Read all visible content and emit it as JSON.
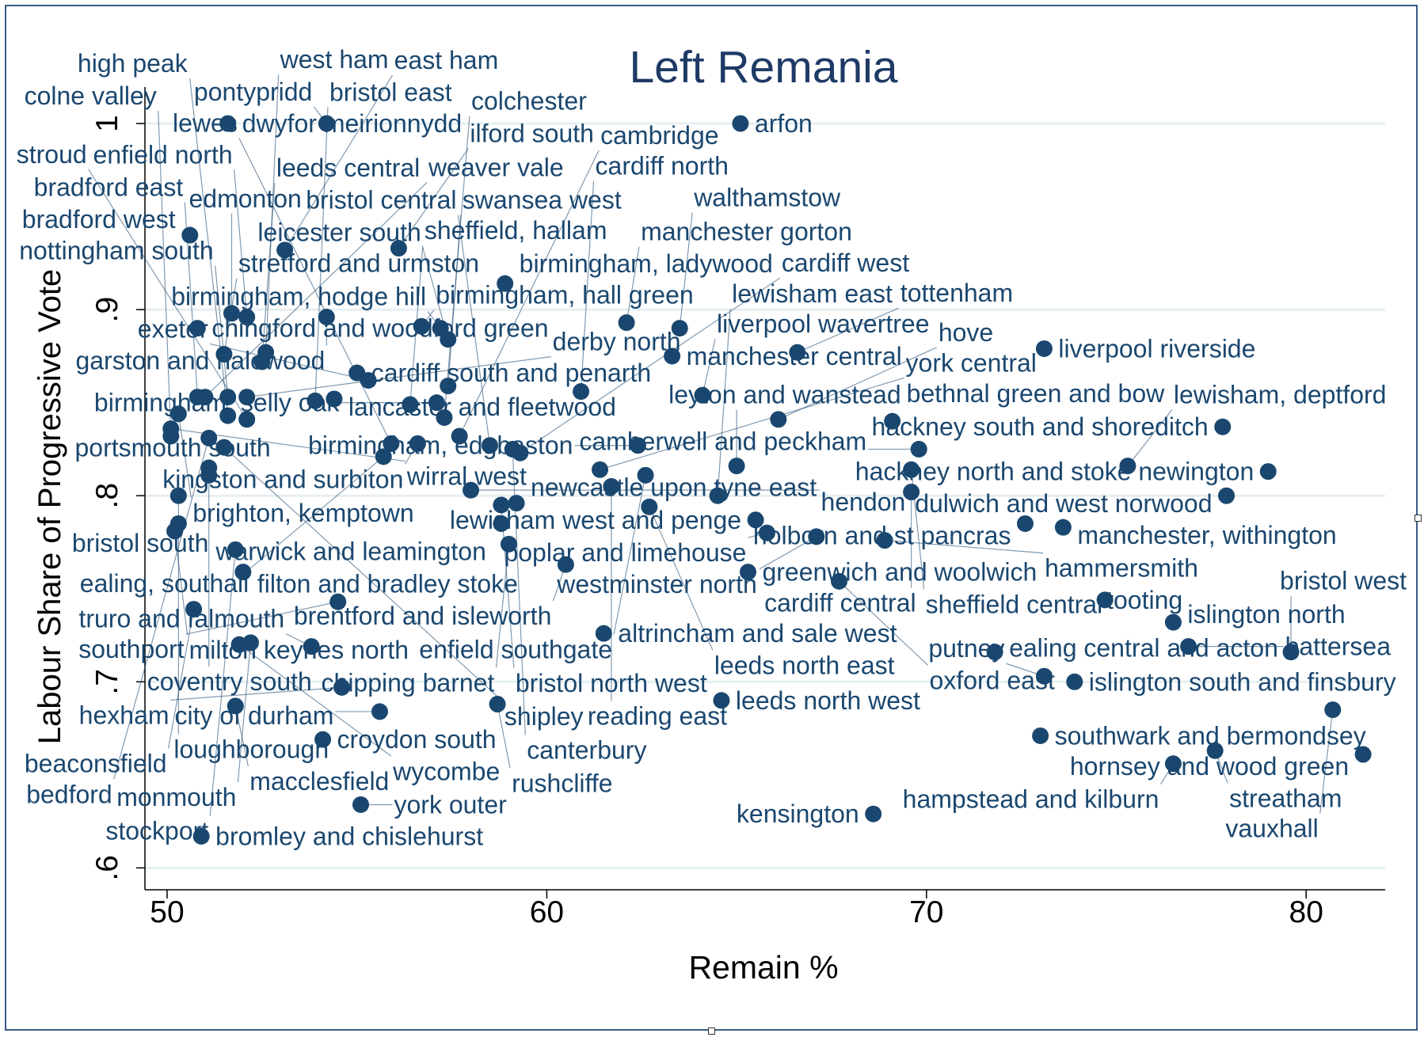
{
  "chart_data": {
    "type": "scatter",
    "title": "Left Remania",
    "xlabel": "Remain %",
    "ylabel": "Labour Share of Progressive Vote",
    "xlim": [
      49.4,
      82.1
    ],
    "ylim": [
      0.594,
      1.0
    ],
    "xticks": [
      50,
      60,
      70,
      80
    ],
    "xtick_labels": [
      "50",
      "60",
      "70",
      "80"
    ],
    "yticks": [
      0.6,
      0.7,
      0.8,
      0.9,
      1.0
    ],
    "ytick_labels": [
      ".6",
      ".7",
      ".8",
      ".9",
      "1"
    ],
    "grid": true,
    "marker_color": "#1a476f",
    "points": [
      {
        "label": "dwyfor meirionnydd",
        "x": 51.6,
        "y": 1.0
      },
      {
        "label": "pontypridd",
        "x": 54.2,
        "y": 1.0
      },
      {
        "label": "arfon",
        "x": 65.1,
        "y": 1.0
      },
      {
        "label": "bradford west",
        "x": 50.6,
        "y": 0.94
      },
      {
        "label": "east ham",
        "x": 53.1,
        "y": 0.932
      },
      {
        "label": "ilford south",
        "x": 56.1,
        "y": 0.933
      },
      {
        "label": "birmingham, ladywood",
        "x": 58.9,
        "y": 0.914
      },
      {
        "label": "edmonton",
        "x": 51.7,
        "y": 0.898
      },
      {
        "label": "garston and halewood",
        "x": 54.2,
        "y": 0.896
      },
      {
        "label": "enfield north",
        "x": 52.1,
        "y": 0.896
      },
      {
        "label": "chingford and woodford green",
        "x": 50.8,
        "y": 0.89
      },
      {
        "label": "birmingham, hall green",
        "x": 56.7,
        "y": 0.891
      },
      {
        "label": "birmingham, hodge hill",
        "x": 57.2,
        "y": 0.89
      },
      {
        "label": "manchester gorton",
        "x": 62.1,
        "y": 0.893
      },
      {
        "label": "walthamstow",
        "x": 63.5,
        "y": 0.89
      },
      {
        "label": "leicester south",
        "x": 57.4,
        "y": 0.884
      },
      {
        "label": "liverpool riverside",
        "x": 73.1,
        "y": 0.879
      },
      {
        "label": "manchester central",
        "x": 63.3,
        "y": 0.875
      },
      {
        "label": "tottenham",
        "x": 66.6,
        "y": 0.877
      },
      {
        "label": "stretford and urmston",
        "x": 51.5,
        "y": 0.876
      },
      {
        "label": "west ham",
        "x": 52.6,
        "y": 0.877
      },
      {
        "label": "leeds central",
        "x": 52.5,
        "y": 0.872
      },
      {
        "label": "cardiff south and penarth",
        "x": 55.0,
        "y": 0.866
      },
      {
        "label": "exeter",
        "x": 55.3,
        "y": 0.862
      },
      {
        "label": "swansea west",
        "x": 57.4,
        "y": 0.859
      },
      {
        "label": "cardiff north",
        "x": 60.9,
        "y": 0.856
      },
      {
        "label": "liverpool wavertree",
        "x": 64.1,
        "y": 0.854
      },
      {
        "label": "bradford east",
        "x": 50.8,
        "y": 0.853
      },
      {
        "label": "weaver vale",
        "x": 51.0,
        "y": 0.853
      },
      {
        "label": "nottingham south",
        "x": 51.6,
        "y": 0.853
      },
      {
        "label": "derby north",
        "x": 52.1,
        "y": 0.853
      },
      {
        "label": "bristol east",
        "x": 53.9,
        "y": 0.851
      },
      {
        "label": "lancaster and fleetwood",
        "x": 54.4,
        "y": 0.852
      },
      {
        "label": "sheffield, hallam",
        "x": 56.4,
        "y": 0.849
      },
      {
        "label": "birmingham, selly oak",
        "x": 57.1,
        "y": 0.85
      },
      {
        "label": "brighton, kemptown",
        "x": 50.3,
        "y": 0.844
      },
      {
        "label": "high peak",
        "x": 51.6,
        "y": 0.843
      },
      {
        "label": "stroud",
        "x": 52.1,
        "y": 0.841
      },
      {
        "label": "colchester",
        "x": 57.3,
        "y": 0.842
      },
      {
        "label": "hove",
        "x": 66.1,
        "y": 0.841
      },
      {
        "label": "bethnal green and bow",
        "x": 69.1,
        "y": 0.84
      },
      {
        "label": "hackney south and shoreditch",
        "x": 77.8,
        "y": 0.837
      },
      {
        "label": "wirral west",
        "x": 50.1,
        "y": 0.836
      },
      {
        "label": "colne valley",
        "x": 50.1,
        "y": 0.832
      },
      {
        "label": "bedford",
        "x": 51.1,
        "y": 0.831
      },
      {
        "label": "cambridge",
        "x": 57.7,
        "y": 0.832
      },
      {
        "label": "shipley",
        "x": 51.5,
        "y": 0.826
      },
      {
        "label": "lewes",
        "x": 55.9,
        "y": 0.828
      },
      {
        "label": "kingston and surbiton",
        "x": 56.6,
        "y": 0.828
      },
      {
        "label": "bristol central",
        "x": 58.5,
        "y": 0.827
      },
      {
        "label": "birmingham, edgbaston",
        "x": 62.4,
        "y": 0.827
      },
      {
        "label": "canterbury",
        "x": 59.1,
        "y": 0.825
      },
      {
        "label": "camberwell and peckham",
        "x": 69.8,
        "y": 0.825
      },
      {
        "label": "cardiff west",
        "x": 59.3,
        "y": 0.823
      },
      {
        "label": "ealing, southall",
        "x": 55.7,
        "y": 0.821
      },
      {
        "label": "lewisham, deptford",
        "x": 75.3,
        "y": 0.816
      },
      {
        "label": "leyton and wanstead",
        "x": 65.0,
        "y": 0.816
      },
      {
        "label": "coventry south",
        "x": 51.1,
        "y": 0.815
      },
      {
        "label": "york central",
        "x": 61.4,
        "y": 0.814
      },
      {
        "label": "sheffield central",
        "x": 69.6,
        "y": 0.814
      },
      {
        "label": "hackney north and stoke newington",
        "x": 79.0,
        "y": 0.813
      },
      {
        "label": "enfield southgate",
        "x": 62.6,
        "y": 0.811
      },
      {
        "label": "portsmouth south",
        "x": 51.1,
        "y": 0.811
      },
      {
        "label": "reading east",
        "x": 61.7,
        "y": 0.805
      },
      {
        "label": "hendon",
        "x": 58.0,
        "y": 0.803
      },
      {
        "label": "cardiff central",
        "x": 69.6,
        "y": 0.802
      },
      {
        "label": "bristol south",
        "x": 50.3,
        "y": 0.8
      },
      {
        "label": "lewisham east",
        "x": 64.5,
        "y": 0.8
      },
      {
        "label": "dulwich and west norwood",
        "x": 77.9,
        "y": 0.8
      },
      {
        "label": "bristol north west",
        "x": 58.8,
        "y": 0.795
      },
      {
        "label": "newcastle upon tyne east",
        "x": 59.2,
        "y": 0.796
      },
      {
        "label": "leeds north east",
        "x": 62.7,
        "y": 0.794
      },
      {
        "label": "warwick and leamington",
        "x": 58.8,
        "y": 0.785
      },
      {
        "label": "loughborough",
        "x": 50.3,
        "y": 0.785
      },
      {
        "label": "lewisham west and penge",
        "x": 65.5,
        "y": 0.787
      },
      {
        "label": "holborn and st pancras",
        "x": 72.6,
        "y": 0.785
      },
      {
        "label": "manchester, withington",
        "x": 73.6,
        "y": 0.783
      },
      {
        "label": "milton keynes north",
        "x": 50.2,
        "y": 0.781
      },
      {
        "label": "poplar and limehouse",
        "x": 65.8,
        "y": 0.78
      },
      {
        "label": "westminster north",
        "x": 67.1,
        "y": 0.778
      },
      {
        "label": "hammersmith",
        "x": 68.9,
        "y": 0.776
      },
      {
        "label": "chipping barnet",
        "x": 59.0,
        "y": 0.774
      },
      {
        "label": "stockport",
        "x": 51.8,
        "y": 0.771
      },
      {
        "label": "brentford and isleworth",
        "x": 60.5,
        "y": 0.763
      },
      {
        "label": "filton and bradley stoke",
        "x": 52.0,
        "y": 0.759
      },
      {
        "label": "greenwich and woolwich",
        "x": 65.3,
        "y": 0.759
      },
      {
        "label": "oxford east",
        "x": 67.7,
        "y": 0.754
      },
      {
        "label": "tooting",
        "x": 74.7,
        "y": 0.744
      },
      {
        "label": "southport",
        "x": 54.5,
        "y": 0.743
      },
      {
        "label": "beaconsfield",
        "x": 50.7,
        "y": 0.739
      },
      {
        "label": "islington north",
        "x": 76.5,
        "y": 0.732
      },
      {
        "label": "altrincham and sale west",
        "x": 61.5,
        "y": 0.726
      },
      {
        "label": "monmouth",
        "x": 52.2,
        "y": 0.721
      },
      {
        "label": "wycombe",
        "x": 51.9,
        "y": 0.72
      },
      {
        "label": "truro and falmouth",
        "x": 53.8,
        "y": 0.719
      },
      {
        "label": "battersea",
        "x": 76.9,
        "y": 0.719
      },
      {
        "label": "bristol west",
        "x": 79.6,
        "y": 0.716
      },
      {
        "label": "ealing central and acton",
        "x": 71.8,
        "y": 0.716
      },
      {
        "label": "putney",
        "x": 73.1,
        "y": 0.703
      },
      {
        "label": "islington south and finsbury",
        "x": 73.9,
        "y": 0.7
      },
      {
        "label": "hexham",
        "x": 54.6,
        "y": 0.697
      },
      {
        "label": "leeds north west",
        "x": 64.6,
        "y": 0.69
      },
      {
        "label": "rushcliffe",
        "x": 58.7,
        "y": 0.688
      },
      {
        "label": "macclesfield",
        "x": 51.8,
        "y": 0.687
      },
      {
        "label": "vauxhall",
        "x": 80.7,
        "y": 0.685
      },
      {
        "label": "city of durham",
        "x": 55.6,
        "y": 0.684
      },
      {
        "label": "southwark and bermondsey",
        "x": 73.0,
        "y": 0.671
      },
      {
        "label": "croydon south",
        "x": 54.1,
        "y": 0.669
      },
      {
        "label": "streatham",
        "x": 77.6,
        "y": 0.663
      },
      {
        "label": "hornsey and wood green",
        "x": 81.5,
        "y": 0.661
      },
      {
        "label": "hampstead and kilburn",
        "x": 76.5,
        "y": 0.656
      },
      {
        "label": "york outer",
        "x": 55.1,
        "y": 0.634
      },
      {
        "label": "kensington",
        "x": 68.6,
        "y": 0.629
      },
      {
        "label": "bromley and chislehurst",
        "x": 50.9,
        "y": 0.617
      }
    ]
  }
}
